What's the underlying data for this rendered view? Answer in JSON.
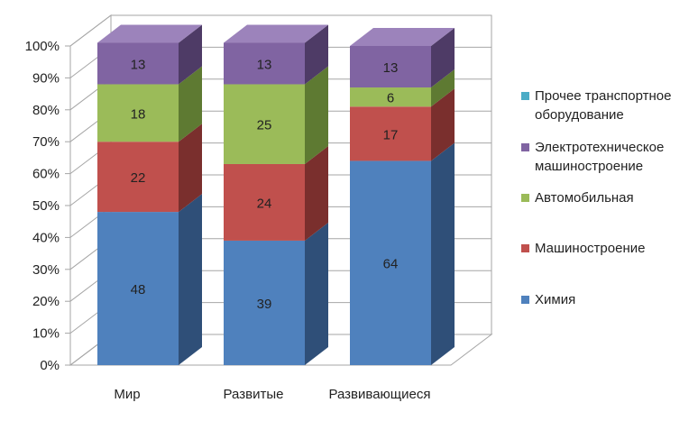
{
  "chart_data": {
    "type": "bar",
    "stacked": true,
    "percent": true,
    "three_d": true,
    "categories": [
      "Мир",
      "Развитые",
      "Развивающиеся"
    ],
    "series": [
      {
        "name": "Химия",
        "values": [
          48,
          39,
          64
        ],
        "color": "#4F81BD",
        "side": "#2F4F78",
        "top": "#6D98CF"
      },
      {
        "name": "Машиностроение",
        "values": [
          22,
          24,
          17
        ],
        "color": "#C0504D",
        "side": "#7A2F2D",
        "top": "#D06A66"
      },
      {
        "name": "Автомобильная",
        "values": [
          18,
          25,
          6
        ],
        "color": "#9BBB59",
        "side": "#5E7A32",
        "top": "#B2CE78"
      },
      {
        "name": "Электротехническое машиностроение",
        "values": [
          13,
          13,
          13
        ],
        "color": "#8064A2",
        "side": "#4E3B66",
        "top": "#9C83BB"
      },
      {
        "name": "Прочее транспортное оборудование",
        "values": [
          0,
          0,
          0
        ],
        "color": "#4BACC6",
        "side": "#2C6D80",
        "top": "#6FC1D6"
      }
    ],
    "y_ticks": [
      "0%",
      "10%",
      "20%",
      "30%",
      "40%",
      "50%",
      "60%",
      "70%",
      "80%",
      "90%",
      "100%"
    ],
    "ylim": [
      0,
      100
    ],
    "grid": true,
    "legend_position": "right"
  },
  "legend": {
    "items": [
      {
        "label_lines": [
          "Прочее транспортное",
          "оборудование"
        ],
        "color": "#4BACC6"
      },
      {
        "label_lines": [
          "Электротехническое",
          "машиностроение"
        ],
        "color": "#8064A2"
      },
      {
        "label_lines": [
          "Автомобильная"
        ],
        "color": "#9BBB59"
      },
      {
        "label_lines": [
          "Машиностроение"
        ],
        "color": "#C0504D"
      },
      {
        "label_lines": [
          "Химия"
        ],
        "color": "#4F81BD"
      }
    ]
  }
}
